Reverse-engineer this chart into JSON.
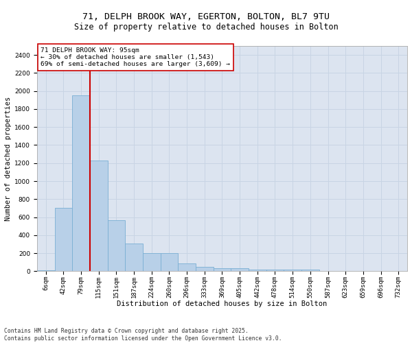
{
  "title1": "71, DELPH BROOK WAY, EGERTON, BOLTON, BL7 9TU",
  "title2": "Size of property relative to detached houses in Bolton",
  "xlabel": "Distribution of detached houses by size in Bolton",
  "ylabel": "Number of detached properties",
  "bar_labels": [
    "6sqm",
    "42sqm",
    "79sqm",
    "115sqm",
    "151sqm",
    "187sqm",
    "224sqm",
    "260sqm",
    "296sqm",
    "333sqm",
    "369sqm",
    "405sqm",
    "442sqm",
    "478sqm",
    "514sqm",
    "550sqm",
    "587sqm",
    "623sqm",
    "659sqm",
    "696sqm",
    "732sqm"
  ],
  "bar_values": [
    10,
    700,
    1950,
    1230,
    570,
    305,
    200,
    200,
    85,
    45,
    35,
    35,
    20,
    20,
    20,
    20,
    5,
    5,
    5,
    0,
    0
  ],
  "bar_color": "#b8d0e8",
  "bar_edgecolor": "#7aafd4",
  "bar_linewidth": 0.6,
  "vline_color": "#cc0000",
  "annotation_text": "71 DELPH BROOK WAY: 95sqm\n← 30% of detached houses are smaller (1,543)\n69% of semi-detached houses are larger (3,609) →",
  "annotation_box_color": "#ffffff",
  "annotation_box_edgecolor": "#cc0000",
  "ylim": [
    0,
    2500
  ],
  "yticks": [
    0,
    200,
    400,
    600,
    800,
    1000,
    1200,
    1400,
    1600,
    1800,
    2000,
    2200,
    2400
  ],
  "grid_color": "#c8d4e4",
  "bg_color": "#dce4f0",
  "fig_bg_color": "#ffffff",
  "footnote": "Contains HM Land Registry data © Crown copyright and database right 2025.\nContains public sector information licensed under the Open Government Licence v3.0.",
  "title1_fontsize": 9.5,
  "title2_fontsize": 8.5,
  "xlabel_fontsize": 7.5,
  "ylabel_fontsize": 7.5,
  "tick_fontsize": 6.5,
  "annotation_fontsize": 6.8,
  "footnote_fontsize": 5.8
}
